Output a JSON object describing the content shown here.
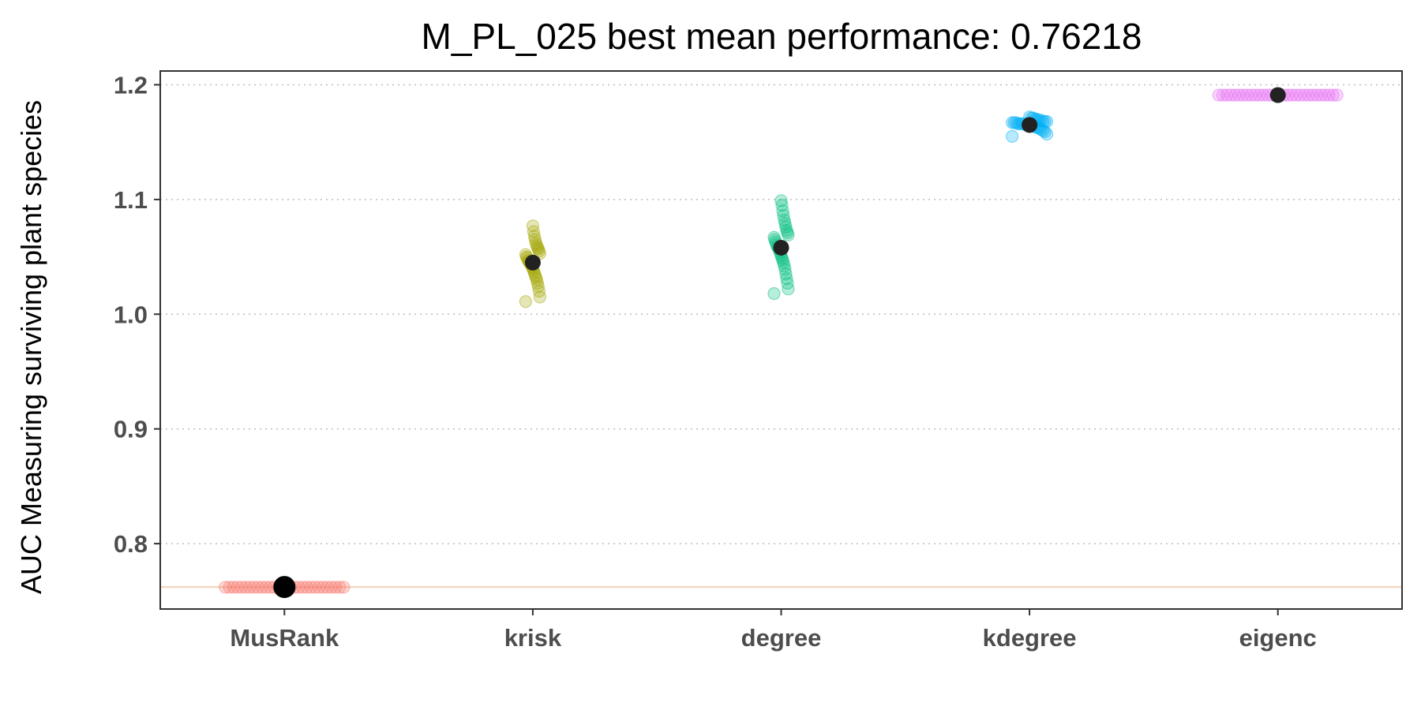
{
  "chart_data": {
    "type": "scatter",
    "title": "M_PL_025 best mean performance: 0.76218",
    "xlabel": "",
    "ylabel": "AUC Measuring surviving plant species",
    "ylim": [
      0.743,
      1.212
    ],
    "yticks": [
      0.8,
      0.9,
      1.0,
      1.1,
      1.2
    ],
    "ytick_labels": [
      "0.8",
      "0.9",
      "1.0",
      "1.1",
      "1.2"
    ],
    "grid": "horizontal-dotted",
    "reference_line": 0.76218,
    "categories": [
      "MusRank",
      "krisk",
      "degree",
      "kdegree",
      "eigenc"
    ],
    "series": [
      {
        "category": "MusRank",
        "color": "#F8766D",
        "mean": 0.76218,
        "values": [
          0.762,
          0.762,
          0.762,
          0.762,
          0.762,
          0.762,
          0.762,
          0.762,
          0.762,
          0.762,
          0.762,
          0.762,
          0.762,
          0.762,
          0.762,
          0.762,
          0.762,
          0.762,
          0.762,
          0.762,
          0.762,
          0.762,
          0.762,
          0.762,
          0.762,
          0.762,
          0.762,
          0.762,
          0.762,
          0.762
        ]
      },
      {
        "category": "krisk",
        "color": "#A3A500",
        "mean": 1.045,
        "values": [
          1.011,
          1.015,
          1.02,
          1.024,
          1.027,
          1.03,
          1.032,
          1.034,
          1.036,
          1.038,
          1.04,
          1.041,
          1.043,
          1.044,
          1.045,
          1.046,
          1.047,
          1.049,
          1.05,
          1.052,
          1.053,
          1.055,
          1.057,
          1.058,
          1.06,
          1.062,
          1.065,
          1.068,
          1.072,
          1.077
        ]
      },
      {
        "category": "degree",
        "color": "#00BF7D",
        "mean": 1.058,
        "values": [
          1.018,
          1.022,
          1.027,
          1.031,
          1.035,
          1.039,
          1.042,
          1.045,
          1.047,
          1.049,
          1.051,
          1.053,
          1.055,
          1.057,
          1.058,
          1.059,
          1.061,
          1.063,
          1.065,
          1.067,
          1.069,
          1.071,
          1.073,
          1.076,
          1.079,
          1.082,
          1.086,
          1.09,
          1.095,
          1.099
        ]
      },
      {
        "category": "kdegree",
        "color": "#00B0F6",
        "mean": 1.165,
        "values": [
          1.155,
          1.157,
          1.159,
          1.16,
          1.161,
          1.162,
          1.163,
          1.163,
          1.164,
          1.164,
          1.165,
          1.165,
          1.165,
          1.166,
          1.166,
          1.166,
          1.166,
          1.167,
          1.167,
          1.167,
          1.168,
          1.168,
          1.168,
          1.169,
          1.169,
          1.17,
          1.17,
          1.171,
          1.171,
          1.172
        ]
      },
      {
        "category": "eigenc",
        "color": "#E76BF3",
        "mean": 1.191,
        "values": [
          1.191,
          1.191,
          1.191,
          1.191,
          1.191,
          1.191,
          1.191,
          1.191,
          1.191,
          1.191,
          1.191,
          1.191,
          1.191,
          1.191,
          1.191,
          1.191,
          1.191,
          1.191,
          1.191,
          1.191,
          1.191,
          1.191,
          1.191,
          1.191,
          1.191,
          1.191,
          1.191,
          1.191,
          1.191,
          1.191
        ]
      }
    ]
  }
}
